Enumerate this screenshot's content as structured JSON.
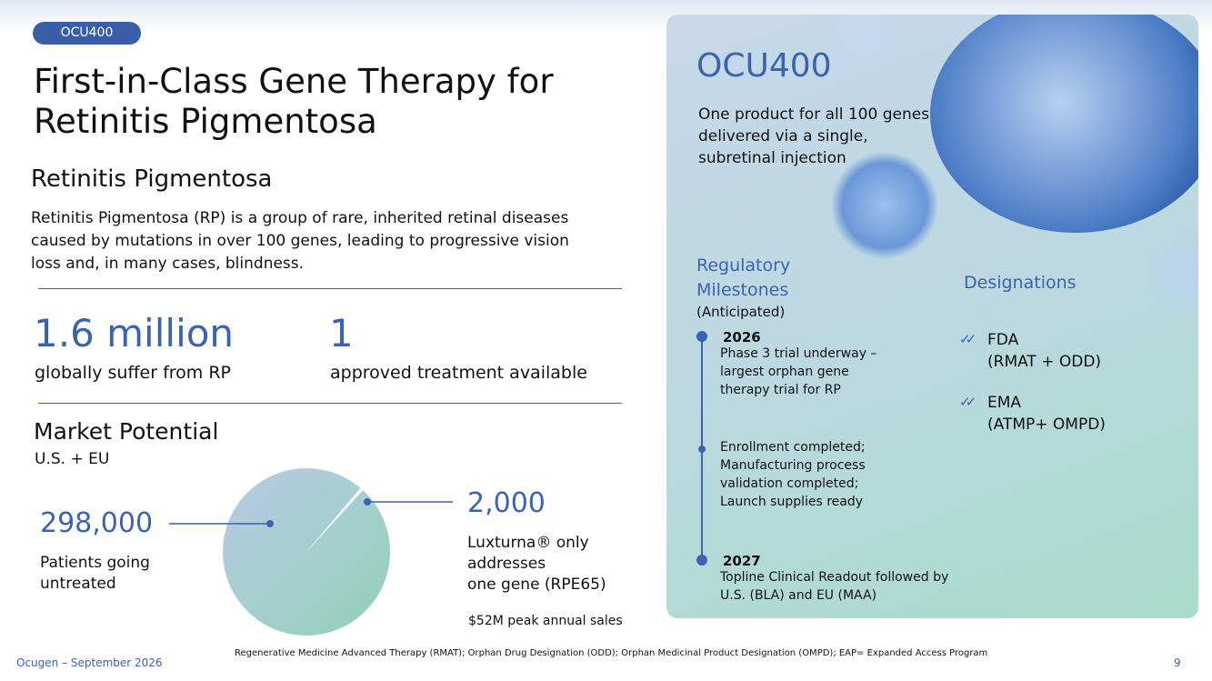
{
  "tag": "OCU400",
  "title_lines": [
    "First-in-Class Gene Therapy for",
    "Retinitis Pigmentosa"
  ],
  "section": {
    "heading": "Retinitis Pigmentosa",
    "body_lines": [
      "Retinitis Pigmentosa (RP) is a group of rare, inherited retinal diseases",
      "caused by mutations in over 100 genes, leading to progressive vision",
      "loss and, in many cases, blindness."
    ]
  },
  "stats": [
    {
      "value": "1.6 million",
      "label": "globally suffer from RP"
    },
    {
      "value": "1",
      "label": "approved treatment available"
    }
  ],
  "market": {
    "heading": "Market Potential",
    "subheading": "U.S. + EU",
    "pie": {
      "values": [
        298000,
        2000
      ],
      "value_labels": [
        "298,000",
        "2,000"
      ]
    },
    "untreated_lines": [
      "Patients going",
      "untreated"
    ],
    "luxturna_lines": [
      "Luxturna® only",
      "addresses",
      "one gene (RPE65)"
    ],
    "sales": "$52M peak annual sales"
  },
  "panel": {
    "title": "OCU400",
    "tagline_lines": [
      "One product for all 100 genes",
      "delivered via a single,",
      "subretinal injection"
    ],
    "milestones_heading_lines": [
      "Regulatory",
      "Milestones"
    ],
    "milestones_note": "(Anticipated)",
    "milestones": [
      {
        "year": "2026",
        "lines": [
          "Phase 3 trial underway –",
          "largest orphan gene",
          "therapy trial for RP"
        ]
      },
      {
        "lines": [
          "Enrollment completed;",
          "Manufacturing process",
          "validation completed;",
          "Launch supplies ready"
        ]
      },
      {
        "year": "2027",
        "lines": [
          "Topline Clinical Readout followed by",
          "U.S. (BLA) and EU (MAA)"
        ]
      }
    ],
    "designations_heading": "Designations",
    "designations": [
      {
        "agency": "FDA",
        "detail": "(RMAT + ODD)"
      },
      {
        "agency": "EMA",
        "detail": "(ATMP+ OMPD)"
      }
    ]
  },
  "footer": {
    "left": "Ocugen – September 2026",
    "note": "Regenerative Medicine Advanced Therapy (RMAT);  Orphan Drug Designation (ODD);  Orphan Medicinal Product Designation (OMPD); EAP= Expanded Access Program",
    "page": "9"
  }
}
